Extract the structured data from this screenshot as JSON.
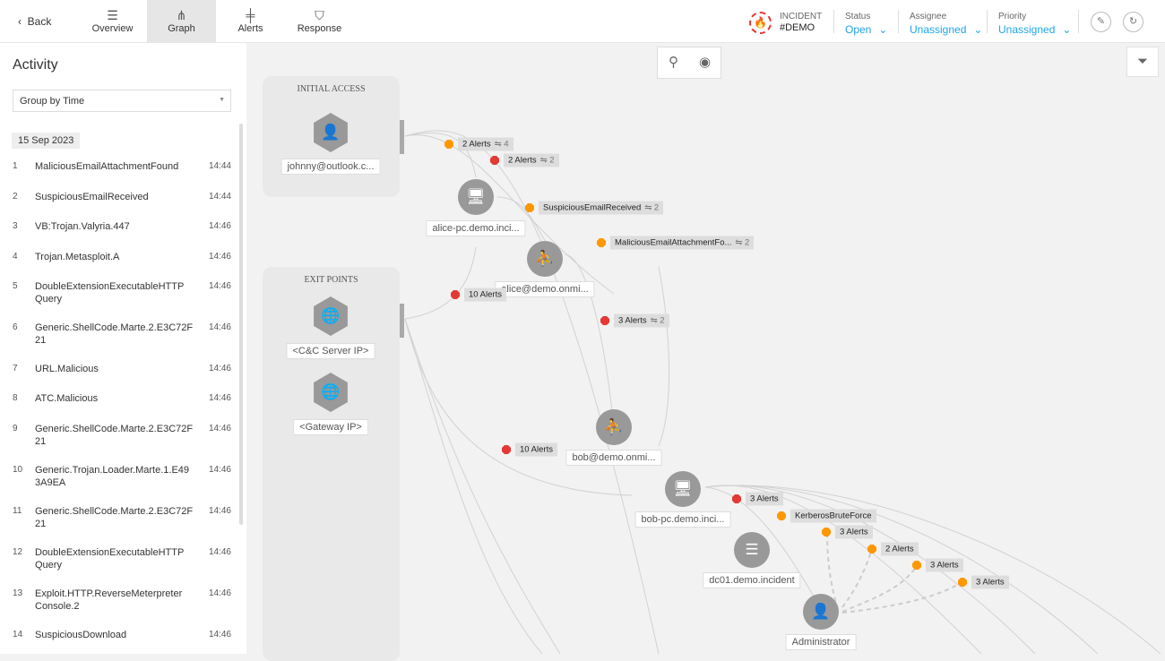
{
  "nav": {
    "back": "Back",
    "tabs": [
      {
        "label": "Overview",
        "icon": "list-icon"
      },
      {
        "label": "Graph",
        "icon": "graph-icon",
        "active": true
      },
      {
        "label": "Alerts",
        "icon": "alerts-icon"
      },
      {
        "label": "Response",
        "icon": "shield-icon"
      }
    ]
  },
  "incident": {
    "label": "INCIDENT",
    "id": "#DEMO"
  },
  "status": {
    "label": "Status",
    "value": "Open"
  },
  "assignee": {
    "label": "Assignee",
    "value": "Unassigned"
  },
  "priority": {
    "label": "Priority",
    "value": "Unassigned"
  },
  "colors": {
    "accent": "#1ea5e9",
    "red": "#e53935",
    "orange": "#ff9800",
    "node": "#999999"
  },
  "activity": {
    "title": "Activity",
    "group_by": "Group by Time",
    "date": "15 Sep 2023",
    "items": [
      {
        "n": "1",
        "label": "MaliciousEmailAttachmentFound",
        "time": "14:44"
      },
      {
        "n": "2",
        "label": "SuspiciousEmailReceived",
        "time": "14:44"
      },
      {
        "n": "3",
        "label": "VB:Trojan.Valyria.447",
        "time": "14:46"
      },
      {
        "n": "4",
        "label": "Trojan.Metasploit.A",
        "time": "14:46"
      },
      {
        "n": "5",
        "label": "DoubleExtensionExecutableHTTP Query",
        "time": "14:46"
      },
      {
        "n": "6",
        "label": "Generic.ShellCode.Marte.2.E3C72F 21",
        "time": "14:46"
      },
      {
        "n": "7",
        "label": "URL.Malicious",
        "time": "14:46"
      },
      {
        "n": "8",
        "label": "ATC.Malicious",
        "time": "14:46"
      },
      {
        "n": "9",
        "label": "Generic.ShellCode.Marte.2.E3C72F 21",
        "time": "14:46"
      },
      {
        "n": "10",
        "label": "Generic.Trojan.Loader.Marte.1.E49 3A9EA",
        "time": "14:46"
      },
      {
        "n": "11",
        "label": "Generic.ShellCode.Marte.2.E3C72F 21",
        "time": "14:46"
      },
      {
        "n": "12",
        "label": "DoubleExtensionExecutableHTTP Query",
        "time": "14:46"
      },
      {
        "n": "13",
        "label": "Exploit.HTTP.ReverseMeterpreter Console.2",
        "time": "14:46"
      },
      {
        "n": "14",
        "label": "SuspiciousDownload",
        "time": "14:46"
      }
    ]
  },
  "graph": {
    "columns": [
      "INITIAL ACCESS",
      "EXIT POINTS"
    ],
    "nodes": [
      {
        "label": "johnny@outlook.c...",
        "type": "unknown-user"
      },
      {
        "label": "alice-pc.demo.inci...",
        "type": "computer"
      },
      {
        "label": "alice@demo.onmi...",
        "type": "user"
      },
      {
        "label": "<C&C Server IP>",
        "type": "globe"
      },
      {
        "label": "<Gateway IP>",
        "type": "globe"
      },
      {
        "label": "bob@demo.onmi...",
        "type": "user"
      },
      {
        "label": "bob-pc.demo.inci...",
        "type": "computer"
      },
      {
        "label": "dc01.demo.incident",
        "type": "server"
      },
      {
        "label": "Administrator",
        "type": "admin"
      }
    ],
    "alerts": [
      {
        "label": "2 Alerts",
        "count": "4",
        "severity": "orange"
      },
      {
        "label": "2 Alerts",
        "count": "2",
        "severity": "red"
      },
      {
        "label": "SuspiciousEmailReceived",
        "count": "2",
        "severity": "orange"
      },
      {
        "label": "MaliciousEmailAttachmentFo...",
        "count": "2",
        "severity": "orange"
      },
      {
        "label": "10 Alerts",
        "count": "",
        "severity": "red"
      },
      {
        "label": "3 Alerts",
        "count": "2",
        "severity": "red"
      },
      {
        "label": "10 Alerts",
        "count": "",
        "severity": "red"
      },
      {
        "label": "3 Alerts",
        "count": "",
        "severity": "red"
      },
      {
        "label": "KerberosBruteForce",
        "count": "",
        "severity": "orange"
      },
      {
        "label": "3 Alerts",
        "count": "",
        "severity": "orange"
      },
      {
        "label": "2 Alerts",
        "count": "",
        "severity": "orange"
      },
      {
        "label": "3 Alerts",
        "count": "",
        "severity": "orange"
      },
      {
        "label": "3 Alerts",
        "count": "",
        "severity": "orange"
      }
    ]
  }
}
